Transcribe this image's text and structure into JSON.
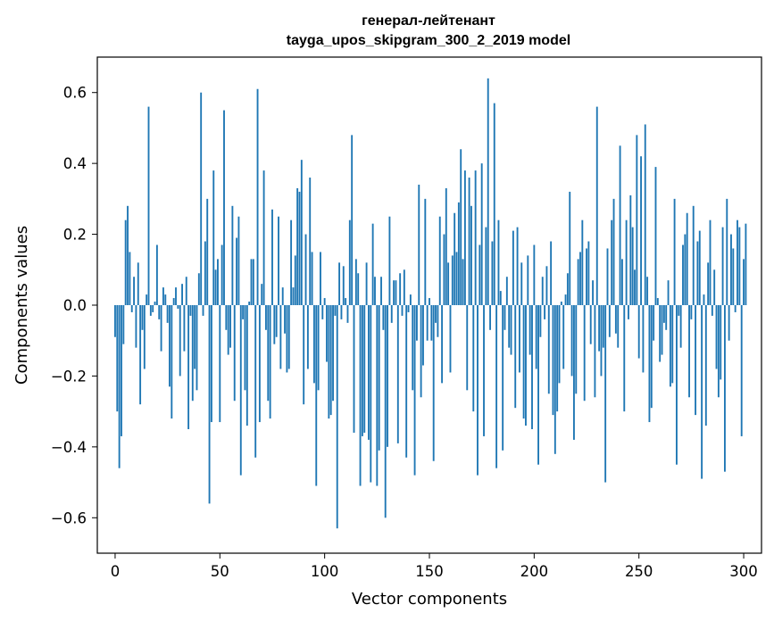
{
  "chart_data": {
    "type": "bar",
    "title": "генерал-лейтенант",
    "subtitle": "tayga_upos_skipgram_300_2_2019 model",
    "xlabel": "Vector components",
    "ylabel": "Components values",
    "xlim": [
      -8.5,
      308.5
    ],
    "ylim": [
      -0.7,
      0.7
    ],
    "xticks": [
      0,
      50,
      100,
      150,
      200,
      250,
      300
    ],
    "xtick_labels": [
      "0",
      "50",
      "100",
      "150",
      "200",
      "250",
      "300"
    ],
    "yticks": [
      -0.6,
      -0.4,
      -0.2,
      0.0,
      0.2,
      0.4,
      0.6
    ],
    "ytick_labels": [
      "−0.6",
      "−0.4",
      "−0.2",
      "0.0",
      "0.2",
      "0.4",
      "0.6"
    ],
    "grid": false,
    "bar_color": "#1f77b4",
    "values": [
      -0.09,
      -0.3,
      -0.46,
      -0.37,
      -0.11,
      0.24,
      0.28,
      0.15,
      -0.02,
      0.08,
      -0.12,
      0.12,
      -0.28,
      -0.07,
      -0.18,
      0.03,
      0.56,
      -0.03,
      -0.02,
      0.01,
      0.17,
      -0.04,
      -0.13,
      0.05,
      0.03,
      -0.05,
      -0.23,
      -0.32,
      0.02,
      0.05,
      -0.01,
      -0.2,
      0.06,
      -0.13,
      0.08,
      -0.35,
      -0.03,
      -0.27,
      -0.18,
      -0.24,
      0.09,
      0.6,
      -0.03,
      0.18,
      0.3,
      -0.56,
      -0.33,
      0.38,
      0.1,
      0.13,
      -0.33,
      0.17,
      0.55,
      -0.07,
      -0.14,
      -0.12,
      0.28,
      -0.27,
      0.19,
      0.25,
      -0.48,
      -0.04,
      -0.24,
      -0.34,
      0.01,
      0.13,
      0.13,
      -0.43,
      0.61,
      -0.33,
      0.06,
      0.38,
      -0.07,
      -0.27,
      -0.32,
      0.27,
      -0.11,
      -0.09,
      0.25,
      -0.18,
      0.05,
      -0.08,
      -0.19,
      -0.18,
      0.24,
      0.05,
      0.14,
      0.33,
      0.32,
      0.41,
      -0.28,
      0.2,
      -0.18,
      0.36,
      0.15,
      -0.22,
      -0.51,
      -0.24,
      0.15,
      -0.04,
      0.02,
      -0.16,
      -0.32,
      -0.31,
      -0.27,
      -0.03,
      -0.63,
      0.12,
      -0.04,
      0.11,
      0.02,
      -0.05,
      0.24,
      0.48,
      -0.36,
      0.13,
      0.09,
      -0.51,
      -0.37,
      -0.36,
      0.12,
      -0.38,
      -0.5,
      0.23,
      0.08,
      -0.51,
      -0.41,
      0.08,
      -0.07,
      -0.6,
      -0.4,
      0.25,
      -0.05,
      0.07,
      0.07,
      -0.39,
      0.09,
      -0.03,
      0.1,
      -0.43,
      -0.02,
      0.03,
      -0.24,
      -0.48,
      -0.1,
      0.34,
      -0.26,
      -0.17,
      0.3,
      -0.1,
      0.02,
      -0.1,
      -0.44,
      -0.05,
      -0.09,
      0.25,
      -0.22,
      0.2,
      0.33,
      0.12,
      -0.19,
      0.14,
      0.26,
      0.15,
      0.29,
      0.44,
      0.13,
      0.38,
      -0.24,
      0.36,
      0.28,
      -0.3,
      0.38,
      -0.48,
      0.17,
      0.4,
      -0.37,
      0.22,
      0.64,
      -0.07,
      0.18,
      0.57,
      -0.46,
      0.24,
      0.04,
      -0.41,
      -0.07,
      0.08,
      -0.12,
      -0.14,
      0.21,
      -0.29,
      0.22,
      -0.19,
      0.12,
      -0.32,
      -0.34,
      0.14,
      -0.14,
      -0.35,
      0.17,
      -0.18,
      -0.45,
      -0.09,
      0.08,
      -0.04,
      0.11,
      -0.25,
      0.18,
      -0.31,
      -0.42,
      -0.3,
      -0.22,
      0.01,
      -0.18,
      0.03,
      0.09,
      0.32,
      -0.2,
      -0.38,
      -0.25,
      0.13,
      0.15,
      0.24,
      -0.27,
      0.16,
      0.18,
      -0.11,
      0.07,
      -0.26,
      0.56,
      -0.13,
      -0.2,
      -0.12,
      -0.5,
      0.16,
      -0.09,
      0.24,
      0.3,
      -0.08,
      -0.12,
      0.45,
      0.13,
      -0.3,
      0.24,
      -0.04,
      0.31,
      0.22,
      0.1,
      0.48,
      -0.15,
      0.42,
      -0.19,
      0.51,
      0.08,
      -0.33,
      -0.29,
      -0.1,
      0.39,
      0.02,
      -0.16,
      -0.14,
      -0.05,
      -0.07,
      0.07,
      -0.23,
      -0.22,
      0.3,
      -0.45,
      -0.03,
      -0.12,
      0.17,
      0.2,
      0.26,
      -0.26,
      -0.04,
      0.28,
      -0.31,
      0.18,
      0.21,
      -0.49,
      0.03,
      -0.34,
      0.12,
      0.24,
      -0.03,
      0.1,
      -0.18,
      -0.26,
      -0.21,
      0.22,
      -0.47,
      0.3,
      -0.1,
      0.2,
      0.16,
      -0.02,
      0.24,
      0.22,
      -0.37,
      0.13,
      0.23
    ]
  }
}
